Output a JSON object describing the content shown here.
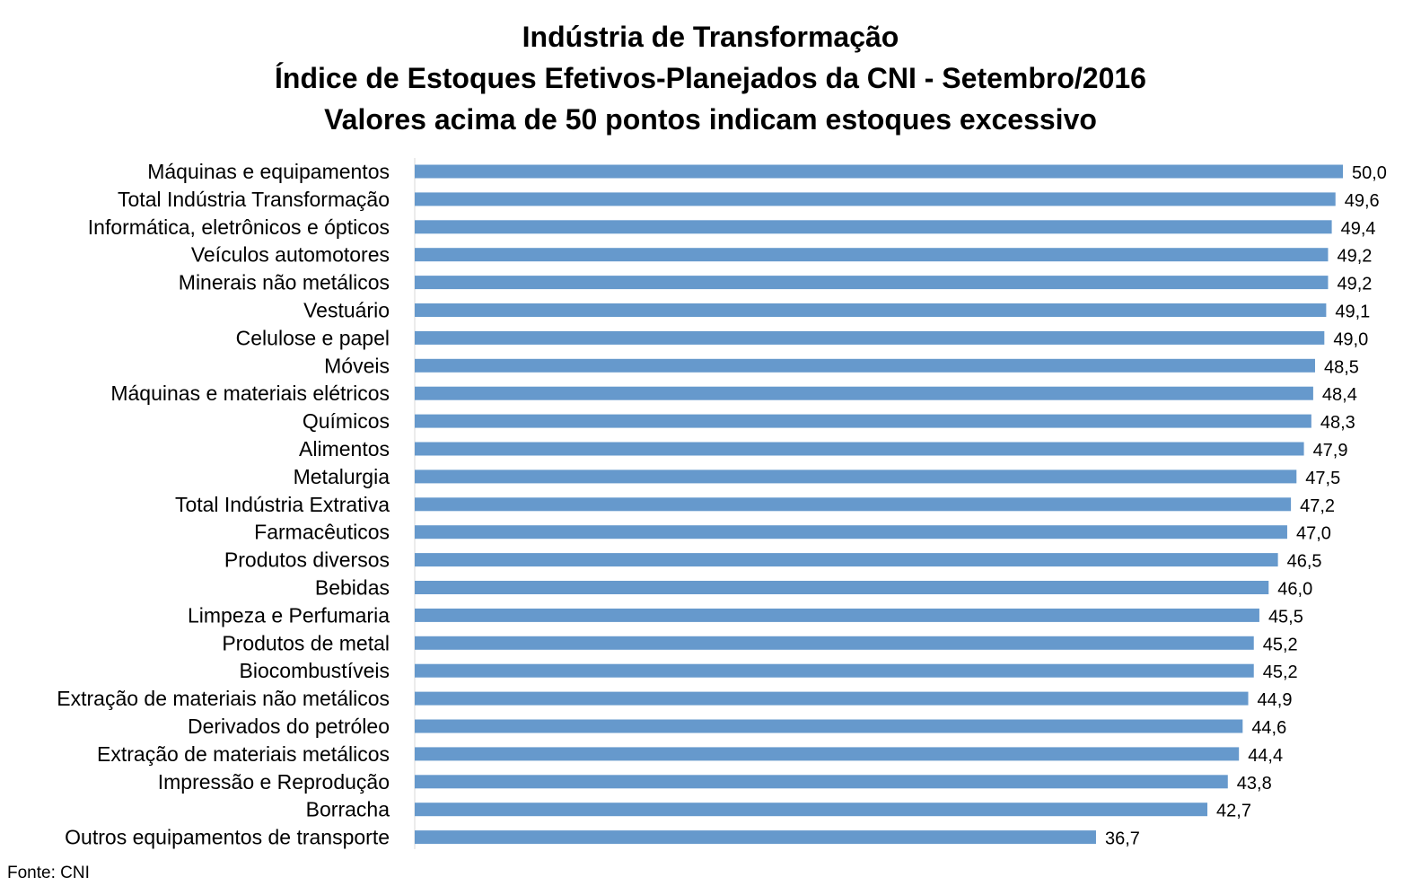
{
  "chart_data": {
    "type": "bar",
    "orientation": "horizontal",
    "title_lines": [
      "Indústria de Transformação",
      "Índice de Estoques Efetivos-Planejados da CNI - Setembro/2016",
      "Valores acima de 50 pontos indicam estoques excessivo"
    ],
    "categories": [
      "Máquinas e equipamentos",
      "Total Indústria Transformação",
      "Informática, eletrônicos e ópticos",
      "Veículos automotores",
      "Minerais não metálicos",
      "Vestuário",
      "Celulose e papel",
      "Móveis",
      "Máquinas e materiais elétricos",
      "Químicos",
      "Alimentos",
      "Metalurgia",
      "Total Indústria Extrativa",
      "Farmacêuticos",
      "Produtos diversos",
      "Bebidas",
      "Limpeza e Perfumaria",
      "Produtos de metal",
      "Biocombustíveis",
      "Extração de materiais não metálicos",
      "Derivados do petróleo",
      "Extração de materiais metálicos",
      "Impressão e Reprodução ",
      "Borracha",
      "Outros equipamentos de transporte"
    ],
    "values": [
      50.0,
      49.6,
      49.4,
      49.2,
      49.2,
      49.1,
      49.0,
      48.5,
      48.4,
      48.3,
      47.9,
      47.5,
      47.2,
      47.0,
      46.5,
      46.0,
      45.5,
      45.2,
      45.2,
      44.9,
      44.6,
      44.4,
      43.8,
      42.7,
      36.7
    ],
    "value_labels": [
      "50,0",
      "49,6",
      "49,4",
      "49,2",
      "49,2",
      "49,1",
      "49,0",
      "48,5",
      "48,4",
      "48,3",
      "47,9",
      "47,5",
      "47,2",
      "47,0",
      "46,5",
      "46,0",
      "45,5",
      "45,2",
      "45,2",
      "44,9",
      "44,6",
      "44,4",
      "43,8",
      "42,7",
      "36,7"
    ],
    "xlim": [
      0,
      50
    ],
    "grid": false,
    "legend": "none",
    "bar_color": "#6699cc",
    "axis_color": "#d9d9d9"
  },
  "source": "Fonte: CNI"
}
